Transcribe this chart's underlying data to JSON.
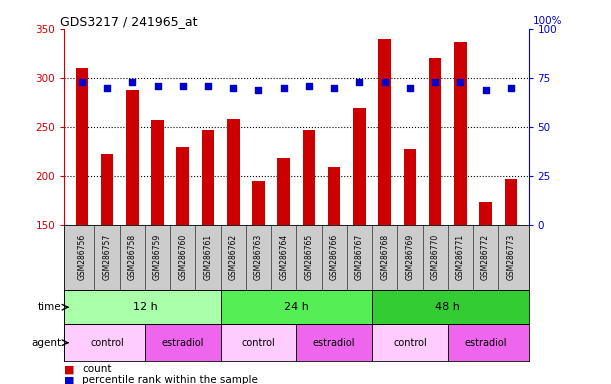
{
  "title": "GDS3217 / 241965_at",
  "samples": [
    "GSM286756",
    "GSM286757",
    "GSM286758",
    "GSM286759",
    "GSM286760",
    "GSM286761",
    "GSM286762",
    "GSM286763",
    "GSM286764",
    "GSM286765",
    "GSM286766",
    "GSM286767",
    "GSM286768",
    "GSM286769",
    "GSM286770",
    "GSM286771",
    "GSM286772",
    "GSM286773"
  ],
  "counts": [
    310,
    222,
    288,
    257,
    229,
    247,
    258,
    195,
    218,
    247,
    209,
    269,
    340,
    227,
    320,
    337,
    173,
    197
  ],
  "percentiles_raw": [
    73,
    70,
    73,
    71,
    71,
    71,
    70,
    69,
    70,
    71,
    70,
    73,
    73,
    70,
    73,
    73,
    69,
    70
  ],
  "ylim_left": [
    150,
    350
  ],
  "ylim_right": [
    0,
    100
  ],
  "yticks_left": [
    150,
    200,
    250,
    300,
    350
  ],
  "yticks_right": [
    0,
    25,
    50,
    75,
    100
  ],
  "bar_color": "#cc0000",
  "dot_color": "#0000cc",
  "time_groups": [
    {
      "label": "12 h",
      "start": 0,
      "end": 6,
      "color": "#aaffaa"
    },
    {
      "label": "24 h",
      "start": 6,
      "end": 12,
      "color": "#55ee55"
    },
    {
      "label": "48 h",
      "start": 12,
      "end": 18,
      "color": "#33cc33"
    }
  ],
  "agent_groups": [
    {
      "label": "control",
      "start": 0,
      "end": 3,
      "color": "#ffccff"
    },
    {
      "label": "estradiol",
      "start": 3,
      "end": 6,
      "color": "#ee66ee"
    },
    {
      "label": "control",
      "start": 6,
      "end": 9,
      "color": "#ffccff"
    },
    {
      "label": "estradiol",
      "start": 9,
      "end": 12,
      "color": "#ee66ee"
    },
    {
      "label": "control",
      "start": 12,
      "end": 15,
      "color": "#ffccff"
    },
    {
      "label": "estradiol",
      "start": 15,
      "end": 18,
      "color": "#ee66ee"
    }
  ],
  "left_axis_color": "#cc0000",
  "right_axis_color": "#0000cc",
  "tick_label_bg": "#cccccc",
  "legend_items": [
    {
      "color": "#cc0000",
      "marker": "s",
      "label": "count"
    },
    {
      "color": "#0000cc",
      "marker": "s",
      "label": "percentile rank within the sample"
    }
  ]
}
